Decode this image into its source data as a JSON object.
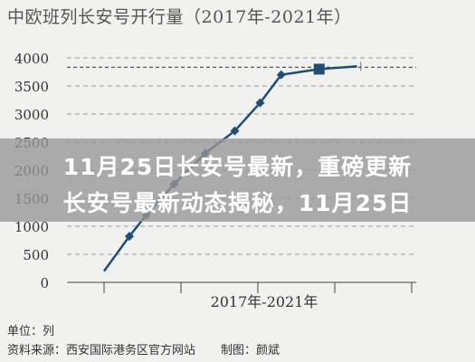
{
  "chart_data": {
    "type": "line",
    "title": "中欧班列长安号开行量（2017年-2021年）",
    "xlabel": "2017年-2021年",
    "ylabel": "",
    "ylim": [
      0,
      4000
    ],
    "yticks": [
      0,
      500,
      1000,
      1500,
      2000,
      2500,
      3000,
      3500,
      4000
    ],
    "grid": true,
    "series": [
      {
        "color": "#1f4e79",
        "x": [
          0.0,
          0.3,
          0.5,
          0.83,
          1.2,
          1.55,
          1.85,
          2.1,
          2.55,
          3.0
        ],
        "values": [
          200,
          820,
          1200,
          1750,
          2300,
          2700,
          3200,
          3700,
          3800,
          3850
        ]
      }
    ],
    "reference_line": {
      "value": 3850,
      "style": "dashed",
      "color": "#444444"
    }
  },
  "banner": {
    "line1": "11月25日长安号最新，重磅更新",
    "line2": "长安号最新动态揭秘，11月25日"
  },
  "footer": {
    "unit": "单位：列",
    "source": "资料来源：西安国际港务区官方网站",
    "author": "制图：颜斌"
  }
}
